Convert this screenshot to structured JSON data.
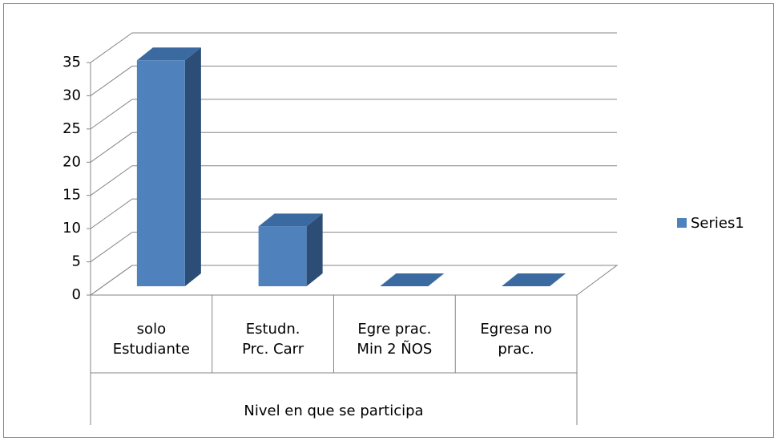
{
  "chart_data": {
    "type": "bar3d",
    "categories": [
      "solo Estudiante",
      "Estudn. Prc. Carr",
      "Egre prac. Min 2 ÑOS",
      "Egresa no prac."
    ],
    "series": [
      {
        "name": "Series1",
        "color": "#4f81bd",
        "values": [
          34,
          9,
          0,
          0
        ]
      }
    ],
    "ylim": [
      0,
      35
    ],
    "yticks": [
      0,
      5,
      10,
      15,
      20,
      25,
      30,
      35
    ],
    "x_label": "Nivel en que se participa",
    "grid": true,
    "legend": "right"
  }
}
